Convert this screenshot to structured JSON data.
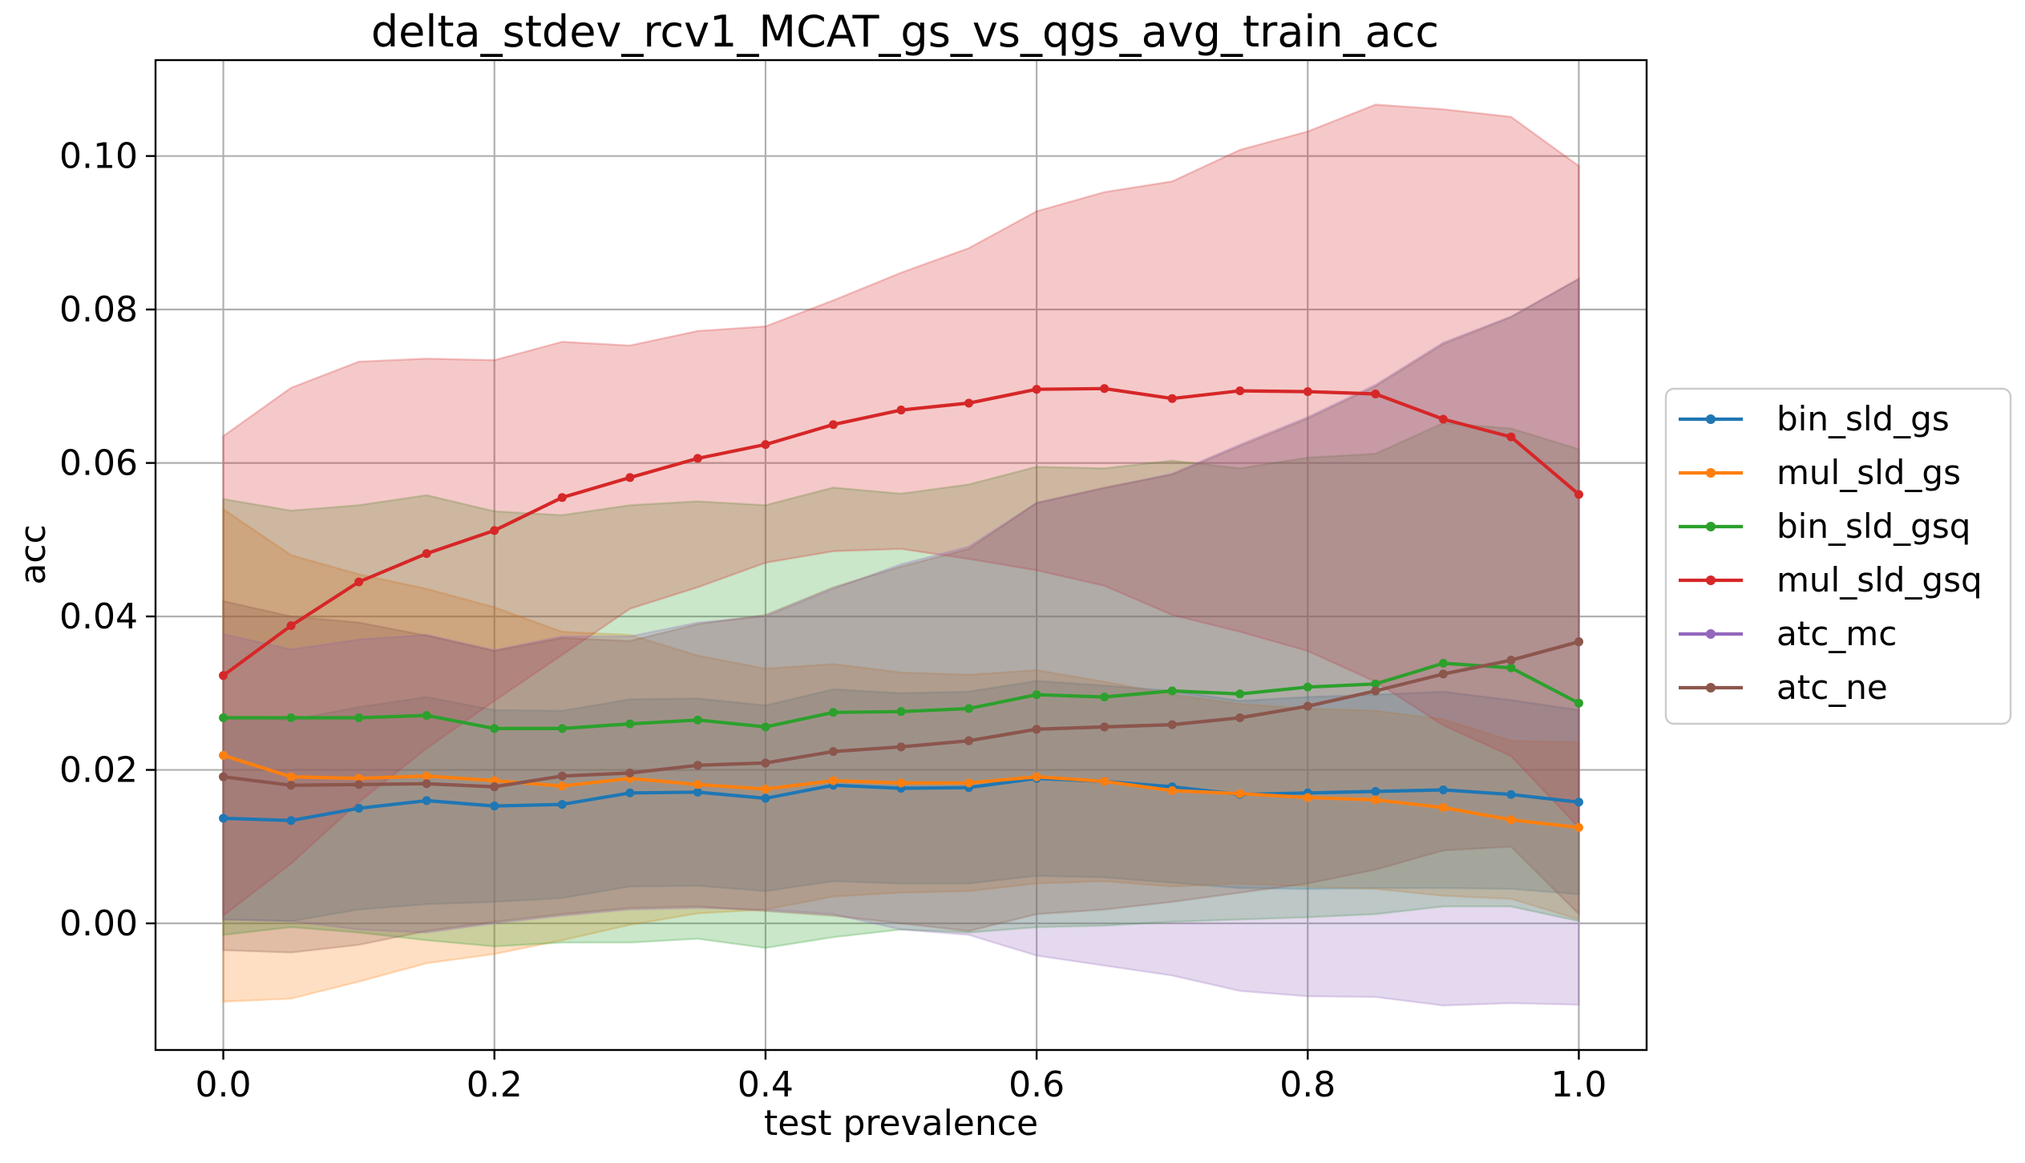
{
  "chart_data": {
    "type": "line",
    "title": "delta_stdev_rcv1_MCAT_gs_vs_qgs_avg_train_acc",
    "xlabel": "test prevalence",
    "ylabel": "acc",
    "xlim": [
      -0.05,
      1.05
    ],
    "ylim": [
      -0.0165,
      0.1125
    ],
    "xticks": [
      0.0,
      0.2,
      0.4,
      0.6,
      0.8,
      1.0
    ],
    "xtick_labels": [
      "0.0",
      "0.2",
      "0.4",
      "0.6",
      "0.8",
      "1.0"
    ],
    "yticks": [
      0.0,
      0.02,
      0.04,
      0.06,
      0.08,
      0.1
    ],
    "ytick_labels": [
      "0.00",
      "0.02",
      "0.04",
      "0.06",
      "0.08",
      "0.10"
    ],
    "grid": true,
    "legend_position": "center-right-outside",
    "x": [
      0.0,
      0.05,
      0.1,
      0.15,
      0.2,
      0.25,
      0.3,
      0.35,
      0.4,
      0.45,
      0.5,
      0.55,
      0.6,
      0.65,
      0.7,
      0.75,
      0.8,
      0.85,
      0.9,
      0.95,
      1.0
    ],
    "series": [
      {
        "name": "bin_sld_gs",
        "color": "#1f77b4",
        "values": [
          0.0137,
          0.0134,
          0.015,
          0.016,
          0.0153,
          0.0155,
          0.017,
          0.0171,
          0.0163,
          0.018,
          0.0176,
          0.0177,
          0.0189,
          0.0185,
          0.0178,
          0.0168,
          0.017,
          0.0172,
          0.0174,
          0.0168,
          0.0158
        ],
        "lower": [
          0.0005,
          0.0003,
          0.0018,
          0.0025,
          0.0028,
          0.0033,
          0.0048,
          0.0049,
          0.0042,
          0.0055,
          0.0052,
          0.0052,
          0.0062,
          0.006,
          0.0053,
          0.0046,
          0.0045,
          0.0046,
          0.0046,
          0.0045,
          0.0038
        ],
        "upper": [
          0.0269,
          0.0265,
          0.0282,
          0.0295,
          0.0278,
          0.0277,
          0.0292,
          0.0293,
          0.0284,
          0.0305,
          0.03,
          0.0302,
          0.0316,
          0.031,
          0.0303,
          0.029,
          0.0295,
          0.0298,
          0.0302,
          0.0291,
          0.0278
        ]
      },
      {
        "name": "mul_sld_gs",
        "color": "#ff7f0e",
        "values": [
          0.0219,
          0.0191,
          0.0189,
          0.0192,
          0.0186,
          0.0179,
          0.0189,
          0.0181,
          0.0175,
          0.0186,
          0.0183,
          0.0183,
          0.0191,
          0.0185,
          0.0173,
          0.0169,
          0.0164,
          0.0161,
          0.0151,
          0.0135,
          0.0125
        ],
        "lower": [
          -0.0102,
          -0.0098,
          -0.0076,
          -0.0052,
          -0.004,
          -0.0022,
          -0.0002,
          0.0013,
          0.0018,
          0.0035,
          0.004,
          0.0042,
          0.0052,
          0.0055,
          0.0048,
          0.0052,
          0.0048,
          0.0045,
          0.0036,
          0.0032,
          0.0005
        ],
        "upper": [
          0.054,
          0.048,
          0.0455,
          0.0436,
          0.0412,
          0.038,
          0.0376,
          0.0349,
          0.0332,
          0.0338,
          0.0327,
          0.0324,
          0.033,
          0.0315,
          0.0298,
          0.0286,
          0.028,
          0.0277,
          0.0266,
          0.0238,
          0.0236
        ]
      },
      {
        "name": "bin_sld_gsq",
        "color": "#2ca02c",
        "values": [
          0.0268,
          0.0268,
          0.0268,
          0.0271,
          0.0254,
          0.0254,
          0.026,
          0.0265,
          0.0256,
          0.0275,
          0.0276,
          0.028,
          0.0298,
          0.0295,
          0.0303,
          0.0299,
          0.0308,
          0.0312,
          0.0339,
          0.0333,
          0.0287
        ],
        "lower": [
          -0.0015,
          -0.0005,
          -0.0012,
          -0.0022,
          -0.003,
          -0.0025,
          -0.0025,
          -0.002,
          -0.0032,
          -0.0018,
          -0.0008,
          -0.0012,
          -0.0005,
          -0.0003,
          0.0002,
          0.0005,
          0.0008,
          0.0012,
          0.0022,
          0.0022,
          0.0003
        ],
        "upper": [
          0.0553,
          0.0538,
          0.0545,
          0.0558,
          0.0537,
          0.0532,
          0.0545,
          0.055,
          0.0545,
          0.0568,
          0.056,
          0.0572,
          0.0595,
          0.0593,
          0.0603,
          0.0593,
          0.0607,
          0.0612,
          0.0652,
          0.0645,
          0.0618
        ]
      },
      {
        "name": "mul_sld_gsq",
        "color": "#d62728",
        "values": [
          0.0323,
          0.0388,
          0.0445,
          0.0482,
          0.0512,
          0.0555,
          0.0581,
          0.0606,
          0.0624,
          0.065,
          0.0669,
          0.0678,
          0.0696,
          0.0697,
          0.0684,
          0.0694,
          0.0693,
          0.069,
          0.0657,
          0.0634,
          0.0559
        ],
        "lower": [
          0.001,
          0.0078,
          0.0158,
          0.0228,
          0.029,
          0.035,
          0.041,
          0.0438,
          0.047,
          0.0485,
          0.0488,
          0.0475,
          0.046,
          0.044,
          0.0402,
          0.038,
          0.0355,
          0.0315,
          0.0258,
          0.0218,
          0.0125
        ],
        "upper": [
          0.0635,
          0.0698,
          0.0732,
          0.0736,
          0.0734,
          0.0758,
          0.0753,
          0.0772,
          0.0778,
          0.0812,
          0.0848,
          0.088,
          0.0928,
          0.0953,
          0.0967,
          0.1008,
          0.1032,
          0.1067,
          0.1061,
          0.1051,
          0.0987
        ]
      },
      {
        "name": "atc_mc",
        "color": "#9467bd",
        "values": [
          0.0191,
          0.018,
          0.0181,
          0.0182,
          0.0178,
          0.0192,
          0.0196,
          0.0206,
          0.0209,
          0.0224,
          0.023,
          0.0238,
          0.0253,
          0.0256,
          0.0259,
          0.0268,
          0.0283,
          0.0303,
          0.0325,
          0.0343,
          0.0367
        ],
        "lower": [
          0.0005,
          0.0003,
          -0.0008,
          -0.0012,
          0.0,
          0.001,
          0.0018,
          0.002,
          0.0018,
          0.0012,
          -0.0008,
          -0.0015,
          -0.0042,
          -0.0055,
          -0.0068,
          -0.0088,
          -0.0095,
          -0.0096,
          -0.0107,
          -0.0104,
          -0.0106
        ],
        "upper": [
          0.0377,
          0.0357,
          0.037,
          0.0376,
          0.0356,
          0.0374,
          0.0374,
          0.0392,
          0.04,
          0.0436,
          0.0468,
          0.0491,
          0.0548,
          0.0567,
          0.0586,
          0.0624,
          0.066,
          0.0702,
          0.0757,
          0.0791,
          0.084
        ]
      },
      {
        "name": "atc_ne",
        "color": "#8c564b",
        "values": [
          0.0191,
          0.018,
          0.0181,
          0.0182,
          0.0178,
          0.0192,
          0.0196,
          0.0206,
          0.0209,
          0.0224,
          0.023,
          0.0238,
          0.0253,
          0.0256,
          0.0259,
          0.0268,
          0.0283,
          0.0303,
          0.0325,
          0.0343,
          0.0367
        ],
        "lower": [
          -0.0035,
          -0.0038,
          -0.0028,
          -0.001,
          0.0002,
          0.0012,
          0.002,
          0.0022,
          0.0016,
          0.001,
          0.0,
          -0.001,
          0.0012,
          0.0018,
          0.0028,
          0.004,
          0.0052,
          0.007,
          0.0095,
          0.01,
          0.0012
        ],
        "upper": [
          0.042,
          0.04,
          0.0392,
          0.0375,
          0.0355,
          0.0372,
          0.0368,
          0.039,
          0.0402,
          0.0438,
          0.0465,
          0.0488,
          0.0548,
          0.0568,
          0.0585,
          0.0622,
          0.0658,
          0.07,
          0.0755,
          0.079,
          0.084
        ]
      }
    ]
  }
}
